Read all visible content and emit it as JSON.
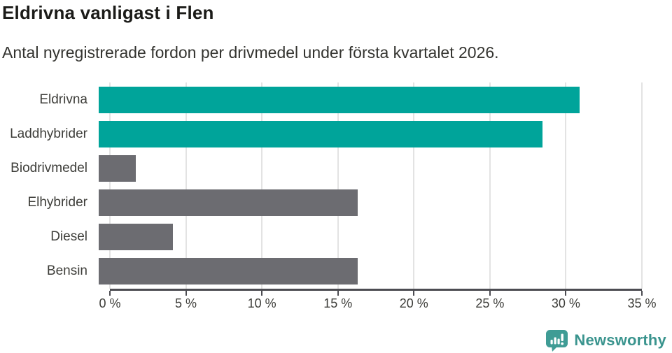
{
  "chart_data": {
    "type": "bar",
    "orientation": "horizontal",
    "title": "Eldrivna vanligast i Flen",
    "subtitle": "Antal nyregistrerade fordon per drivmedel under första kvartalet 2026.",
    "categories": [
      "Eldrivna",
      "Laddhybrider",
      "Biodrivmedel",
      "Elhybrider",
      "Diesel",
      "Bensin"
    ],
    "values": [
      31.0,
      28.6,
      2.4,
      16.7,
      4.8,
      16.7
    ],
    "unit": "%",
    "xlim": [
      0,
      35
    ],
    "x_tick_values": [
      0,
      5,
      10,
      15,
      20,
      25,
      30,
      35
    ],
    "x_tick_labels": [
      "0 %",
      "5 %",
      "10 %",
      "15 %",
      "20 %",
      "25 %",
      "30 %",
      "35 %"
    ],
    "bar_colors": [
      "#00A49A",
      "#00A49A",
      "#6C6C71",
      "#6C6C71",
      "#6C6C71",
      "#6C6C71"
    ],
    "grid": true,
    "legend": false
  },
  "footer": {
    "brand": "Newsworthy"
  },
  "colors": {
    "accent_teal": "#00A49A",
    "bar_gray": "#6C6C71",
    "axis": "#4C4C52",
    "gridline": "#E3E3E3",
    "title_text": "#1B1B18",
    "body_text": "#33332F",
    "brand_teal": "#3A948E",
    "brand_icon_bg": "#3F9C95",
    "background": "#FFFFFF"
  }
}
